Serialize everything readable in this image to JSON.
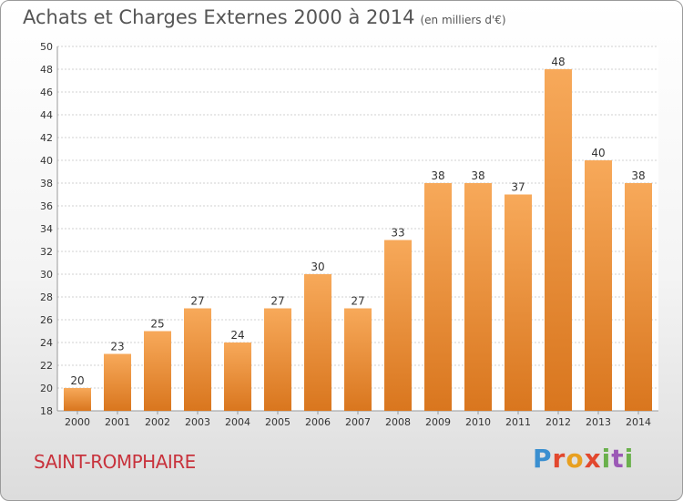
{
  "header": {
    "title": "Achats et Charges Externes 2000 à 2014",
    "unit": "(en milliers d'€)"
  },
  "footer": {
    "commune": "SAINT-ROMPHAIRE",
    "logo_text": "Proxiti"
  },
  "colors": {
    "bar_top": "#f7a95a",
    "bar_bottom": "#d9761e",
    "grid": "#d0d0d0",
    "title": "#555555",
    "commune": "#c8323c"
  },
  "chart_data": {
    "type": "bar",
    "title": "Achats et Charges Externes 2000 à 2014",
    "subtitle": "(en milliers d'€)",
    "categories": [
      "2000",
      "2001",
      "2002",
      "2003",
      "2004",
      "2005",
      "2006",
      "2007",
      "2008",
      "2009",
      "2010",
      "2011",
      "2012",
      "2013",
      "2014"
    ],
    "values": [
      20,
      23,
      25,
      27,
      24,
      27,
      30,
      27,
      33,
      38,
      38,
      37,
      48,
      40,
      38
    ],
    "ylim": [
      18,
      50
    ],
    "yticks": [
      18,
      20,
      22,
      24,
      26,
      28,
      30,
      32,
      34,
      36,
      38,
      40,
      42,
      44,
      46,
      48,
      50
    ],
    "grid": true,
    "data_labels": true
  }
}
